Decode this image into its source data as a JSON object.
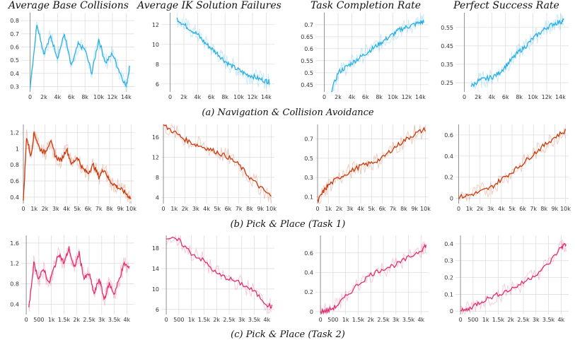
{
  "column_titles": [
    "Average Base Collisions",
    "Average IK Solution Failures",
    "Task Completion Rate",
    "Perfect Success Rate"
  ],
  "captions": [
    "(a) Navigation & Collision Avoidance",
    "(b) Pick & Place (Task 1)",
    "(c) Pick & Place (Task 2)"
  ],
  "colors": {
    "row_a": "#2bb0e3",
    "row_b": "#c93a0c",
    "row_c": "#e0306f",
    "grid": "#d9d9d9",
    "axis": "#888888"
  },
  "chart_data": [
    {
      "type": "line",
      "row": 0,
      "col": 0,
      "xlabel": "",
      "ylabel": "",
      "xticks": [
        0,
        2000,
        4000,
        6000,
        8000,
        10000,
        12000,
        14000
      ],
      "xtick_labels": [
        "0",
        "2k",
        "4k",
        "6k",
        "8k",
        "10k",
        "12k",
        "14k"
      ],
      "yticks": [
        0.3,
        0.4,
        0.5,
        0.6,
        0.7,
        0.8
      ],
      "ytick_labels": [
        "0.3",
        "0.4",
        "0.5",
        "0.6",
        "0.7",
        "0.8"
      ],
      "xlim": [
        -1300,
        15200
      ],
      "ylim": [
        0.26,
        0.86
      ],
      "x": [
        0,
        1000,
        2000,
        3000,
        4000,
        5000,
        6000,
        7000,
        8000,
        9000,
        10000,
        11000,
        12000,
        13000,
        14000,
        14500
      ],
      "y": [
        0.3,
        0.78,
        0.55,
        0.68,
        0.52,
        0.7,
        0.45,
        0.62,
        0.58,
        0.4,
        0.66,
        0.48,
        0.55,
        0.42,
        0.3,
        0.45
      ]
    },
    {
      "type": "line",
      "row": 0,
      "col": 1,
      "xlabel": "",
      "ylabel": "",
      "xticks": [
        0,
        2000,
        4000,
        6000,
        8000,
        10000,
        12000,
        14000
      ],
      "xtick_labels": [
        "0",
        "2k",
        "4k",
        "6k",
        "8k",
        "10k",
        "12k",
        "14k"
      ],
      "yticks": [
        6,
        8,
        10,
        12
      ],
      "ytick_labels": [
        "6",
        "8",
        "10",
        "12"
      ],
      "xlim": [
        -1300,
        15200
      ],
      "ylim": [
        5.2,
        13.2
      ],
      "x": [
        1000,
        2000,
        3000,
        4000,
        5000,
        6000,
        7000,
        8000,
        9000,
        10000,
        11000,
        12000,
        13000,
        14000,
        14500
      ],
      "y": [
        12.6,
        12,
        11.5,
        11,
        10.2,
        9.6,
        9,
        8.3,
        7.8,
        7.4,
        7,
        6.8,
        6.5,
        6.3,
        6.2
      ]
    },
    {
      "type": "line",
      "row": 0,
      "col": 2,
      "xlabel": "",
      "ylabel": "",
      "xticks": [
        0,
        2000,
        4000,
        6000,
        8000,
        10000,
        12000,
        14000
      ],
      "xtick_labels": [
        "0",
        "2k",
        "4k",
        "6k",
        "8k",
        "10k",
        "12k",
        "14k"
      ],
      "yticks": [
        0.45,
        0.5,
        0.55,
        0.6,
        0.65,
        0.7
      ],
      "ytick_labels": [
        "0.45",
        "0.5",
        "0.55",
        "0.6",
        "0.65",
        "0.7"
      ],
      "xlim": [
        -1300,
        15200
      ],
      "ylim": [
        0.42,
        0.75
      ],
      "x": [
        1000,
        2000,
        3000,
        4000,
        5000,
        6000,
        7000,
        8000,
        9000,
        10000,
        11000,
        12000,
        13000,
        14000,
        14500
      ],
      "y": [
        0.42,
        0.5,
        0.52,
        0.54,
        0.56,
        0.58,
        0.6,
        0.62,
        0.64,
        0.66,
        0.68,
        0.69,
        0.7,
        0.71,
        0.71
      ]
    },
    {
      "type": "line",
      "row": 0,
      "col": 3,
      "xlabel": "",
      "ylabel": "",
      "xticks": [
        0,
        2000,
        4000,
        6000,
        8000,
        10000,
        12000,
        14000
      ],
      "xtick_labels": [
        "0",
        "2k",
        "4k",
        "6k",
        "8k",
        "10k",
        "12k",
        "14k"
      ],
      "yticks": [
        0.25,
        0.35,
        0.45,
        0.55
      ],
      "ytick_labels": [
        "0.25",
        "0.35",
        "0.45",
        "0.55"
      ],
      "xlim": [
        -1300,
        15200
      ],
      "ylim": [
        0.2,
        0.63
      ],
      "x": [
        1000,
        2000,
        3000,
        4000,
        5000,
        6000,
        7000,
        8000,
        9000,
        10000,
        11000,
        12000,
        13000,
        14000,
        14500
      ],
      "y": [
        0.23,
        0.26,
        0.27,
        0.28,
        0.3,
        0.34,
        0.38,
        0.42,
        0.45,
        0.49,
        0.52,
        0.55,
        0.57,
        0.58,
        0.59
      ]
    },
    {
      "type": "line",
      "row": 1,
      "col": 0,
      "xlabel": "",
      "ylabel": "",
      "xticks": [
        0,
        1000,
        2000,
        3000,
        4000,
        5000,
        6000,
        7000,
        8000,
        9000,
        10000
      ],
      "xtick_labels": [
        "0",
        "1k",
        "2k",
        "3k",
        "4k",
        "5k",
        "6k",
        "7k",
        "8k",
        "9k",
        "10k"
      ],
      "yticks": [
        0.4,
        0.6,
        0.8,
        1,
        1.2
      ],
      "ytick_labels": [
        "0.4",
        "0.6",
        "0.8",
        "1",
        "1.2"
      ],
      "xlim": [
        -200,
        10300
      ],
      "ylim": [
        0.32,
        1.3
      ],
      "x": [
        0,
        300,
        700,
        1000,
        1500,
        2000,
        2500,
        3000,
        3500,
        4000,
        4500,
        5000,
        5500,
        6000,
        6500,
        7000,
        7500,
        8000,
        8500,
        9000,
        9500,
        10000
      ],
      "y": [
        0.35,
        1.15,
        0.9,
        1.2,
        1.0,
        0.95,
        1.1,
        0.9,
        0.85,
        1.0,
        0.8,
        0.9,
        0.75,
        0.7,
        0.8,
        0.65,
        0.75,
        0.6,
        0.55,
        0.5,
        0.45,
        0.38
      ]
    },
    {
      "type": "line",
      "row": 1,
      "col": 1,
      "xlabel": "",
      "ylabel": "",
      "xticks": [
        0,
        1000,
        2000,
        3000,
        4000,
        5000,
        6000,
        7000,
        8000,
        9000,
        10000
      ],
      "xtick_labels": [
        "0",
        "1k",
        "2k",
        "3k",
        "4k",
        "5k",
        "6k",
        "7k",
        "8k",
        "9k",
        "10k"
      ],
      "yticks": [
        4,
        8,
        12,
        16
      ],
      "ytick_labels": [
        "4",
        "8",
        "12",
        "16"
      ],
      "xlim": [
        -200,
        10300
      ],
      "ylim": [
        2.8,
        18.5
      ],
      "x": [
        0,
        1000,
        2000,
        3000,
        4000,
        5000,
        6000,
        7000,
        8000,
        9000,
        10000
      ],
      "y": [
        18.3,
        17,
        15.5,
        14.5,
        13.8,
        13,
        12,
        10.5,
        8,
        6,
        4.2
      ]
    },
    {
      "type": "line",
      "row": 1,
      "col": 2,
      "xlabel": "",
      "ylabel": "",
      "xticks": [
        0,
        1000,
        2000,
        3000,
        4000,
        5000,
        6000,
        7000,
        8000,
        9000,
        10000
      ],
      "xtick_labels": [
        "0",
        "1k",
        "2k",
        "3k",
        "4k",
        "5k",
        "6k",
        "7k",
        "8k",
        "9k",
        "10k"
      ],
      "yticks": [
        0.1,
        0.3,
        0.5,
        0.7
      ],
      "ytick_labels": [
        "0.1",
        "0.3",
        "0.5",
        "0.7"
      ],
      "xlim": [
        -200,
        10300
      ],
      "ylim": [
        0.03,
        0.85
      ],
      "x": [
        0,
        500,
        1000,
        2000,
        3000,
        4000,
        5000,
        6000,
        7000,
        8000,
        9000,
        10000
      ],
      "y": [
        0.05,
        0.15,
        0.22,
        0.3,
        0.36,
        0.42,
        0.45,
        0.5,
        0.6,
        0.68,
        0.75,
        0.8
      ]
    },
    {
      "type": "line",
      "row": 1,
      "col": 3,
      "xlabel": "",
      "ylabel": "",
      "xticks": [
        0,
        1000,
        2000,
        3000,
        4000,
        5000,
        6000,
        7000,
        8000,
        9000,
        10000
      ],
      "xtick_labels": [
        "0",
        "1k",
        "2k",
        "3k",
        "4k",
        "5k",
        "6k",
        "7k",
        "8k",
        "9k",
        "10k"
      ],
      "yticks": [
        0,
        0.2,
        0.4,
        0.6
      ],
      "ytick_labels": [
        "0",
        "0.2",
        "0.4",
        "0.6"
      ],
      "xlim": [
        -300,
        10300
      ],
      "ylim": [
        -0.05,
        0.7
      ],
      "x": [
        0,
        1000,
        2000,
        3000,
        4000,
        5000,
        6000,
        7000,
        8000,
        9000,
        10000
      ],
      "y": [
        0.01,
        0.03,
        0.06,
        0.1,
        0.18,
        0.25,
        0.33,
        0.42,
        0.5,
        0.58,
        0.64
      ]
    },
    {
      "type": "line",
      "row": 2,
      "col": 0,
      "xlabel": "",
      "ylabel": "",
      "xticks": [
        0,
        500,
        1000,
        1500,
        2000,
        2500,
        3000,
        3500,
        4000
      ],
      "xtick_labels": [
        "0",
        "500",
        "1k",
        "1.5k",
        "2k",
        "2.5k",
        "3k",
        "3.5k",
        "4k"
      ],
      "yticks": [
        0.4,
        0.8,
        1.2,
        1.6
      ],
      "ytick_labels": [
        "0.4",
        "0.8",
        "1.2",
        "1.6"
      ],
      "xlim": [
        -200,
        4300
      ],
      "ylim": [
        0.2,
        1.75
      ],
      "x": [
        100,
        300,
        500,
        700,
        900,
        1100,
        1300,
        1500,
        1700,
        1900,
        2100,
        2300,
        2500,
        2700,
        2900,
        3100,
        3300,
        3500,
        3700,
        3900,
        4100
      ],
      "y": [
        0.3,
        1.2,
        0.9,
        1.1,
        0.8,
        1.1,
        1.4,
        1.2,
        1.5,
        1.1,
        1.4,
        0.9,
        1.0,
        0.6,
        0.9,
        0.5,
        0.8,
        0.6,
        0.9,
        1.2,
        1.1
      ]
    },
    {
      "type": "line",
      "row": 2,
      "col": 1,
      "xlabel": "",
      "ylabel": "",
      "xticks": [
        0,
        500,
        1000,
        1500,
        2000,
        2500,
        3000,
        3500,
        4000
      ],
      "xtick_labels": [
        "0",
        "500",
        "1k",
        "1.5k",
        "2k",
        "2.5k",
        "3k",
        "3.5k",
        "4k"
      ],
      "yticks": [
        6,
        10,
        14,
        18
      ],
      "ytick_labels": [
        "6",
        "10",
        "14",
        "18"
      ],
      "xlim": [
        -200,
        4300
      ],
      "ylim": [
        5.0,
        20.5
      ],
      "x": [
        0,
        500,
        1000,
        1500,
        2000,
        2500,
        3000,
        3500,
        4000,
        4200
      ],
      "y": [
        20,
        19.5,
        17,
        15.5,
        13,
        12,
        11,
        9.5,
        7,
        6.5
      ]
    },
    {
      "type": "line",
      "row": 2,
      "col": 2,
      "xlabel": "",
      "ylabel": "",
      "xticks": [
        0,
        500,
        1000,
        1500,
        2000,
        2500,
        3000,
        3500,
        4000
      ],
      "xtick_labels": [
        "0",
        "500",
        "1k",
        "1.5k",
        "2k",
        "2.5k",
        "3k",
        "3.5k",
        "4k"
      ],
      "yticks": [
        0,
        0.2,
        0.4,
        0.6
      ],
      "ytick_labels": [
        "0",
        "0.2",
        "0.4",
        "0.6"
      ],
      "xlim": [
        -200,
        4300
      ],
      "ylim": [
        -0.03,
        0.78
      ],
      "x": [
        0,
        300,
        600,
        1000,
        1500,
        2000,
        2500,
        3000,
        3500,
        4000,
        4200
      ],
      "y": [
        0,
        0.01,
        0.05,
        0.15,
        0.28,
        0.38,
        0.44,
        0.48,
        0.55,
        0.63,
        0.68
      ]
    },
    {
      "type": "line",
      "row": 2,
      "col": 3,
      "xlabel": "",
      "ylabel": "",
      "xticks": [
        0,
        500,
        1000,
        1500,
        2000,
        2500,
        3000,
        3500,
        4000
      ],
      "xtick_labels": [
        "0",
        "500",
        "1k",
        "1.5k",
        "2k",
        "2.5k",
        "3k",
        "3.5k",
        "4k"
      ],
      "yticks": [
        0,
        0.1,
        0.2,
        0.3,
        0.4
      ],
      "ytick_labels": [
        "0",
        "0.1",
        "0.2",
        "0.3",
        "0.4"
      ],
      "xlim": [
        -200,
        4300
      ],
      "ylim": [
        -0.02,
        0.45
      ],
      "x": [
        0,
        300,
        600,
        1000,
        1500,
        2000,
        2500,
        3000,
        3500,
        4000,
        4200
      ],
      "y": [
        0,
        0.01,
        0.04,
        0.07,
        0.1,
        0.13,
        0.17,
        0.22,
        0.28,
        0.38,
        0.4
      ]
    }
  ]
}
